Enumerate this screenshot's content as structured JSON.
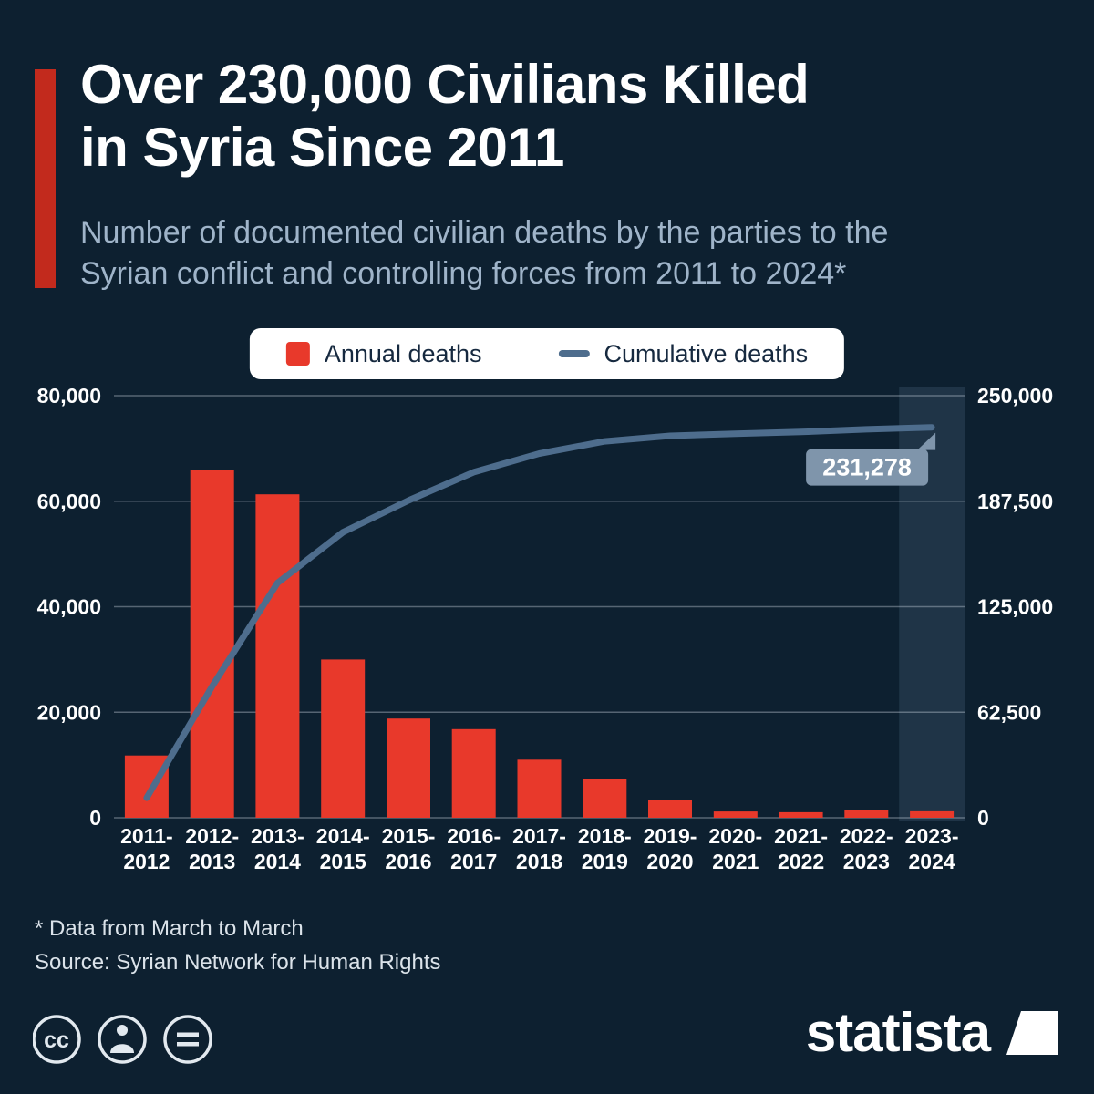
{
  "header": {
    "title_line1": "Over 230,000 Civilians Killed",
    "title_line2": "in Syria Since 2011",
    "subtitle_line1": "Number of documented civilian deaths by the parties to the",
    "subtitle_line2": "Syrian conflict and controlling forces from 2011 to 2024*"
  },
  "legend": {
    "annual_label": "Annual deaths",
    "cumulative_label": "Cumulative deaths"
  },
  "colors": {
    "background": "#0d2030",
    "accent": "#c22a1d",
    "bar": "#e8392b",
    "line": "#4e6d8d",
    "annotation_bg": "#7f95ab",
    "legend_bg": "#ffffff",
    "subtitle": "#9fb4c9",
    "grid": "rgba(205,215,226,0.38)",
    "highlight": "rgba(130,160,190,0.16)"
  },
  "chart_data": {
    "type": "bar+line",
    "title": "Over 230,000 Civilians Killed in Syria Since 2011",
    "categories": [
      "2011-2012",
      "2012-2013",
      "2013-2014",
      "2014-2015",
      "2015-2016",
      "2016-2017",
      "2017-2018",
      "2018-2019",
      "2019-2020",
      "2020-2021",
      "2021-2022",
      "2022-2023",
      "2023-2024"
    ],
    "series": [
      {
        "name": "Annual deaths",
        "type": "bar",
        "axis": "left",
        "values": [
          11800,
          66000,
          61300,
          30000,
          18800,
          16800,
          11000,
          7250,
          3300,
          1200,
          1050,
          1550,
          1228
        ]
      },
      {
        "name": "Cumulative deaths",
        "type": "line",
        "axis": "right",
        "values": [
          11800,
          77800,
          139100,
          169100,
          187900,
          204700,
          215700,
          222950,
          226250,
          227450,
          228500,
          230050,
          231278
        ]
      }
    ],
    "left_axis": {
      "max": 80000,
      "ticks": [
        0,
        20000,
        40000,
        60000,
        80000
      ],
      "labels": [
        "0",
        "20,000",
        "40,000",
        "60,000",
        "80,000"
      ]
    },
    "right_axis": {
      "max": 250000,
      "ticks": [
        0,
        62500,
        125000,
        187500,
        250000
      ],
      "labels": [
        "0",
        "62,500",
        "125,000",
        "187,500",
        "250,000"
      ]
    },
    "grid": "horizontal",
    "legend_position": "top-center",
    "highlight_index": 12,
    "annotation": {
      "text": "231,278",
      "index": 12
    }
  },
  "footnotes": {
    "note": "* Data from March to March",
    "source": "Source: Syrian Network for Human Rights"
  },
  "footer": {
    "logo_text": "statista",
    "icons": [
      "cc-icon",
      "attribution-icon",
      "no-derivatives-icon"
    ]
  }
}
